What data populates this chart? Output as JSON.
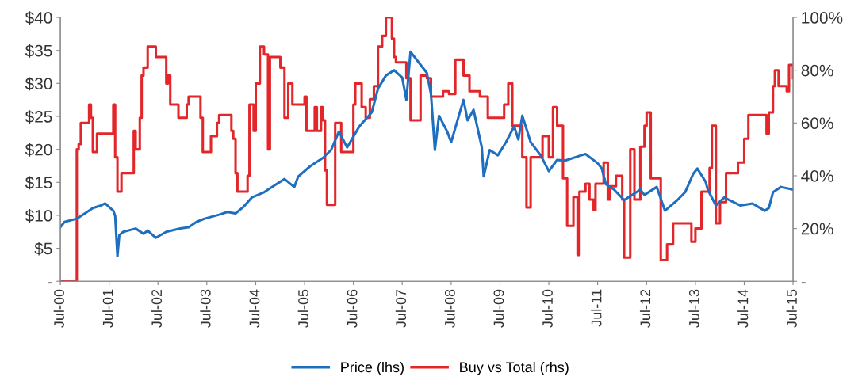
{
  "chart_data": {
    "type": "line",
    "xlim": [
      "2000-07-01",
      "2015-07-01"
    ],
    "xticks": [
      {
        "value": "2000-07-01",
        "label": "Jul-00"
      },
      {
        "value": "2001-07-01",
        "label": "Jul-01"
      },
      {
        "value": "2002-07-01",
        "label": "Jul-02"
      },
      {
        "value": "2003-07-01",
        "label": "Jul-03"
      },
      {
        "value": "2004-07-01",
        "label": "Jul-04"
      },
      {
        "value": "2005-07-01",
        "label": "Jul-05"
      },
      {
        "value": "2006-07-01",
        "label": "Jul-06"
      },
      {
        "value": "2007-07-01",
        "label": "Jul-07"
      },
      {
        "value": "2008-07-01",
        "label": "Jul-08"
      },
      {
        "value": "2009-07-01",
        "label": "Jul-09"
      },
      {
        "value": "2010-07-01",
        "label": "Jul-10"
      },
      {
        "value": "2011-07-01",
        "label": "Jul-11"
      },
      {
        "value": "2012-07-01",
        "label": "Jul-12"
      },
      {
        "value": "2013-07-01",
        "label": "Jul-13"
      },
      {
        "value": "2014-07-01",
        "label": "Jul-14"
      },
      {
        "value": "2015-07-01",
        "label": "Jul-15"
      }
    ],
    "ylim": [
      0,
      40
    ],
    "yticks": [
      {
        "value": 0,
        "label": "-"
      },
      {
        "value": 5,
        "label": "$5"
      },
      {
        "value": 10,
        "label": "$10"
      },
      {
        "value": 15,
        "label": "$15"
      },
      {
        "value": 20,
        "label": "$20"
      },
      {
        "value": 25,
        "label": "$25"
      },
      {
        "value": 30,
        "label": "$30"
      },
      {
        "value": 35,
        "label": "$35"
      },
      {
        "value": 40,
        "label": "$40"
      }
    ],
    "y2lim": [
      0,
      100
    ],
    "y2ticks": [
      {
        "value": 0,
        "label": "-"
      },
      {
        "value": 20,
        "label": "20%"
      },
      {
        "value": 40,
        "label": "40%"
      },
      {
        "value": 60,
        "label": "60%"
      },
      {
        "value": 80,
        "label": "80%"
      },
      {
        "value": 100,
        "label": "100%"
      }
    ],
    "grid": false,
    "legend": "bottom",
    "series": [
      {
        "name": "Price (lhs)",
        "color": "#1f6fc0",
        "x": [
          "2000-07-01",
          "2000-08-01",
          "2000-11-01",
          "2001-01-01",
          "2001-03-01",
          "2001-05-01",
          "2001-06-01",
          "2001-08-01",
          "2001-08-15",
          "2001-09-01",
          "2001-09-15",
          "2001-10-15",
          "2002-01-15",
          "2002-03-15",
          "2002-04-15",
          "2002-06-15",
          "2002-09-01",
          "2002-12-15",
          "2003-02-15",
          "2003-04-15",
          "2003-06-15",
          "2003-10-01",
          "2003-12-01",
          "2004-02-01",
          "2004-04-01",
          "2004-06-01",
          "2004-09-01",
          "2004-12-01",
          "2005-02-01",
          "2005-04-15",
          "2005-05-15",
          "2005-08-15",
          "2005-11-15",
          "2006-01-15",
          "2006-03-15",
          "2006-05-15",
          "2006-08-15",
          "2006-11-15",
          "2007-01-01",
          "2007-03-01",
          "2007-05-01",
          "2007-07-01",
          "2007-08-01",
          "2007-09-01",
          "2007-11-01",
          "2008-01-01",
          "2008-02-01",
          "2008-03-01",
          "2008-04-01",
          "2008-06-01",
          "2008-07-01",
          "2008-10-01",
          "2008-11-01",
          "2008-12-15",
          "2009-02-15",
          "2009-03-01",
          "2009-04-15",
          "2009-06-15",
          "2009-08-15",
          "2009-10-15",
          "2009-11-15",
          "2009-12-15",
          "2010-02-15",
          "2010-05-01",
          "2010-07-01",
          "2010-09-01",
          "2010-11-01",
          "2011-03-01",
          "2011-04-01",
          "2011-07-01",
          "2011-08-01",
          "2011-09-01",
          "2011-11-01",
          "2012-01-15",
          "2012-05-15",
          "2012-06-15",
          "2012-09-15",
          "2012-11-15",
          "2013-02-15",
          "2013-04-15",
          "2013-06-15",
          "2013-07-15",
          "2013-09-15",
          "2013-10-01",
          "2013-12-01",
          "2014-02-01",
          "2014-06-01",
          "2014-09-01",
          "2014-12-01",
          "2015-01-01",
          "2015-02-01",
          "2015-04-01",
          "2015-07-01"
        ],
        "values": [
          8.2,
          9.0,
          9.5,
          10.3,
          11.1,
          11.5,
          11.8,
          10.7,
          9.9,
          3.8,
          7.0,
          7.5,
          8.0,
          7.2,
          7.7,
          6.6,
          7.5,
          8.0,
          8.2,
          9.0,
          9.5,
          10.1,
          10.5,
          10.3,
          11.3,
          12.7,
          13.5,
          14.7,
          15.5,
          14.3,
          15.9,
          17.5,
          18.7,
          19.9,
          22.7,
          20.3,
          23.5,
          25.6,
          29.2,
          31.2,
          32.0,
          30.9,
          27.5,
          34.8,
          33.2,
          31.6,
          28.4,
          19.9,
          25.1,
          22.7,
          21.1,
          27.5,
          24.4,
          26.0,
          20.3,
          15.9,
          19.9,
          19.1,
          21.1,
          23.5,
          21.5,
          25.1,
          21.1,
          19.1,
          16.7,
          18.4,
          18.3,
          19.1,
          19.3,
          17.9,
          17.1,
          14.7,
          13.9,
          12.3,
          13.9,
          13.1,
          14.3,
          10.7,
          12.3,
          13.5,
          16.3,
          17.1,
          15.1,
          13.9,
          11.5,
          12.7,
          11.5,
          11.8,
          10.7,
          11.1,
          13.5,
          14.3,
          13.9
        ]
      },
      {
        "name": "Buy vs Total (rhs)",
        "type": "step",
        "axis": "y2",
        "color": "#e3262a",
        "x": [
          "2000-07-01",
          "2000-11-01",
          "2000-11-15",
          "2000-12-01",
          "2001-02-01",
          "2001-02-15",
          "2001-03-01",
          "2001-04-01",
          "2001-08-01",
          "2001-08-15",
          "2001-09-01",
          "2001-10-01",
          "2002-01-01",
          "2002-01-15",
          "2002-02-15",
          "2002-03-01",
          "2002-03-15",
          "2002-04-15",
          "2002-06-15",
          "2002-09-01",
          "2002-09-15",
          "2002-10-01",
          "2002-12-01",
          "2003-02-01",
          "2003-02-15",
          "2003-05-15",
          "2003-06-01",
          "2003-08-01",
          "2003-09-15",
          "2003-10-01",
          "2004-01-01",
          "2004-01-15",
          "2004-02-01",
          "2004-02-15",
          "2004-05-01",
          "2004-05-15",
          "2004-06-15",
          "2004-07-01",
          "2004-08-01",
          "2004-09-01",
          "2004-10-01",
          "2004-10-15",
          "2005-01-01",
          "2005-02-01",
          "2005-03-01",
          "2005-04-01",
          "2005-07-01",
          "2005-07-15",
          "2005-09-15",
          "2005-10-01",
          "2005-11-01",
          "2005-11-15",
          "2005-12-01",
          "2005-12-15",
          "2006-02-15",
          "2006-04-01",
          "2006-07-01",
          "2006-07-15",
          "2006-09-01",
          "2006-10-01",
          "2006-11-01",
          "2006-12-01",
          "2007-01-01",
          "2007-02-01",
          "2007-03-01",
          "2007-04-15",
          "2007-05-01",
          "2007-05-15",
          "2007-08-01",
          "2007-09-01",
          "2007-11-15",
          "2008-01-01",
          "2008-02-01",
          "2008-05-01",
          "2008-06-15",
          "2008-08-01",
          "2008-10-01",
          "2008-11-15",
          "2009-02-01",
          "2009-04-01",
          "2009-08-01",
          "2009-09-01",
          "2009-10-01",
          "2009-12-15",
          "2010-01-15",
          "2010-02-15",
          "2010-05-15",
          "2010-07-01",
          "2010-08-01",
          "2010-09-01",
          "2010-10-15",
          "2010-11-15",
          "2011-01-01",
          "2011-02-01",
          "2011-02-15",
          "2011-04-01",
          "2011-05-01",
          "2011-06-01",
          "2011-06-15",
          "2011-08-15",
          "2011-09-15",
          "2011-10-01",
          "2011-11-15",
          "2012-01-01",
          "2012-01-15",
          "2012-03-01",
          "2012-04-01",
          "2012-05-15",
          "2012-06-15",
          "2012-07-01",
          "2012-08-01",
          "2012-10-15",
          "2012-12-01",
          "2013-01-15",
          "2013-06-01",
          "2013-07-01",
          "2013-08-15",
          "2013-10-15",
          "2013-11-01",
          "2013-12-01",
          "2014-01-01",
          "2014-02-15",
          "2014-05-15",
          "2014-07-01",
          "2014-08-01",
          "2014-12-15",
          "2015-01-01",
          "2015-02-01",
          "2015-02-15",
          "2015-03-15",
          "2015-05-15",
          "2015-06-01",
          "2015-07-01"
        ],
        "values": [
          0,
          50,
          52,
          60,
          67,
          62,
          49,
          56,
          67,
          47,
          34,
          41,
          57,
          50,
          62,
          78,
          81,
          89,
          85,
          75,
          78,
          67,
          62,
          67,
          70,
          62,
          49,
          55,
          60,
          63,
          57,
          54,
          41,
          34,
          40,
          67,
          57,
          75,
          89,
          86,
          50,
          85,
          81,
          62,
          75,
          67,
          70,
          57,
          66,
          57,
          66,
          61,
          42,
          29,
          60,
          49,
          67,
          75,
          66,
          62,
          69,
          74,
          89,
          93,
          100,
          92,
          85,
          83,
          77,
          61,
          78,
          77,
          70,
          72,
          71,
          84,
          78,
          72,
          70,
          62,
          67,
          75,
          59,
          47,
          28,
          47,
          55,
          47,
          66,
          59,
          39,
          21,
          32,
          10,
          34,
          37,
          31,
          27,
          37,
          45,
          31,
          36,
          40,
          31,
          9,
          50,
          31,
          51,
          59,
          64,
          39,
          8,
          14,
          22,
          15,
          20,
          34,
          43,
          59,
          22,
          30,
          41,
          45,
          54,
          63,
          56,
          64,
          74,
          80,
          74,
          72,
          82,
          77
        ]
      }
    ]
  }
}
